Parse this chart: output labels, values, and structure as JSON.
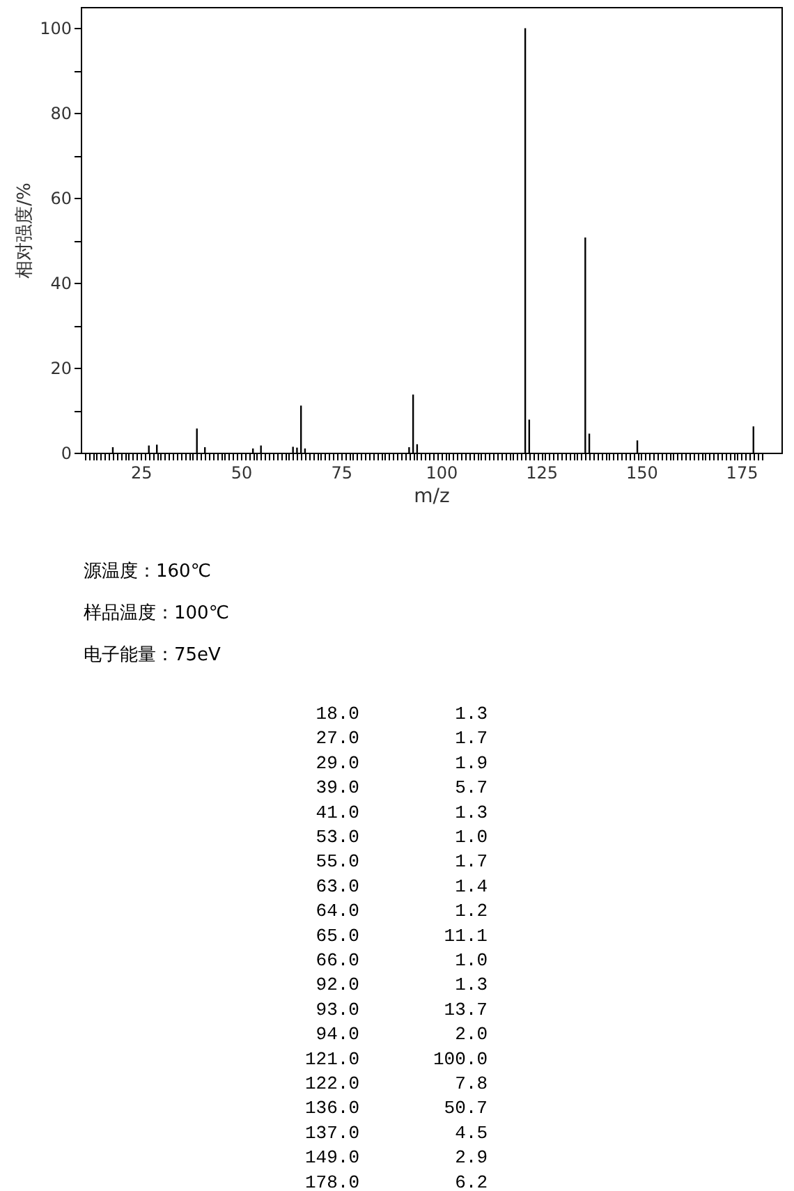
{
  "chart_data": [
    {
      "type": "bar",
      "xlabel": "m/z",
      "ylabel": "相对强度/%",
      "x": [
        18,
        27,
        29,
        39,
        41,
        53,
        55,
        63,
        64,
        65,
        66,
        92,
        93,
        94,
        121,
        122,
        136,
        137,
        149,
        178
      ],
      "series": [
        {
          "color": "#000000",
          "values": [
            1.3,
            1.7,
            1.9,
            5.7,
            1.3,
            1.0,
            1.7,
            1.4,
            1.2,
            11.1,
            1.0,
            1.3,
            13.7,
            2.0,
            100.0,
            7.8,
            50.7,
            4.5,
            2.9,
            6.2
          ]
        }
      ],
      "xlim": [
        10,
        185
      ],
      "ylim": [
        0,
        105
      ],
      "xticks": [
        {
          "value": 11,
          "label": null
        },
        {
          "value": 12,
          "label": null
        },
        {
          "value": 13,
          "label": null
        },
        {
          "value": 14,
          "label": null
        },
        {
          "value": 15,
          "label": null
        },
        {
          "value": 16,
          "label": null
        },
        {
          "value": 17,
          "label": null
        },
        {
          "value": 18,
          "label": null
        },
        {
          "value": 19,
          "label": null
        },
        {
          "value": 20,
          "label": null
        },
        {
          "value": 21,
          "label": null
        },
        {
          "value": 22,
          "label": null
        },
        {
          "value": 23,
          "label": null
        },
        {
          "value": 24,
          "label": null
        },
        25,
        {
          "value": 26,
          "label": null
        },
        {
          "value": 27,
          "label": null
        },
        {
          "value": 28,
          "label": null
        },
        {
          "value": 29,
          "label": null
        },
        {
          "value": 30,
          "label": null
        },
        {
          "value": 31,
          "label": null
        },
        {
          "value": 32,
          "label": null
        },
        {
          "value": 33,
          "label": null
        },
        {
          "value": 34,
          "label": null
        },
        {
          "value": 35,
          "label": null
        },
        {
          "value": 36,
          "label": null
        },
        {
          "value": 37,
          "label": null
        },
        {
          "value": 38,
          "label": null
        },
        {
          "value": 39,
          "label": null
        },
        {
          "value": 40,
          "label": null
        },
        {
          "value": 41,
          "label": null
        },
        {
          "value": 42,
          "label": null
        },
        {
          "value": 43,
          "label": null
        },
        {
          "value": 44,
          "label": null
        },
        {
          "value": 45,
          "label": null
        },
        {
          "value": 46,
          "label": null
        },
        {
          "value": 47,
          "label": null
        },
        {
          "value": 48,
          "label": null
        },
        {
          "value": 49,
          "label": null
        },
        50,
        {
          "value": 51,
          "label": null
        },
        {
          "value": 52,
          "label": null
        },
        {
          "value": 53,
          "label": null
        },
        {
          "value": 54,
          "label": null
        },
        {
          "value": 55,
          "label": null
        },
        {
          "value": 56,
          "label": null
        },
        {
          "value": 57,
          "label": null
        },
        {
          "value": 58,
          "label": null
        },
        {
          "value": 59,
          "label": null
        },
        {
          "value": 60,
          "label": null
        },
        {
          "value": 61,
          "label": null
        },
        {
          "value": 62,
          "label": null
        },
        {
          "value": 63,
          "label": null
        },
        {
          "value": 64,
          "label": null
        },
        {
          "value": 65,
          "label": null
        },
        {
          "value": 66,
          "label": null
        },
        {
          "value": 67,
          "label": null
        },
        {
          "value": 68,
          "label": null
        },
        {
          "value": 69,
          "label": null
        },
        {
          "value": 70,
          "label": null
        },
        {
          "value": 71,
          "label": null
        },
        {
          "value": 72,
          "label": null
        },
        {
          "value": 73,
          "label": null
        },
        {
          "value": 74,
          "label": null
        },
        75,
        {
          "value": 76,
          "label": null
        },
        {
          "value": 77,
          "label": null
        },
        {
          "value": 78,
          "label": null
        },
        {
          "value": 79,
          "label": null
        },
        {
          "value": 80,
          "label": null
        },
        {
          "value": 81,
          "label": null
        },
        {
          "value": 82,
          "label": null
        },
        {
          "value": 83,
          "label": null
        },
        {
          "value": 84,
          "label": null
        },
        {
          "value": 85,
          "label": null
        },
        {
          "value": 86,
          "label": null
        },
        {
          "value": 87,
          "label": null
        },
        {
          "value": 88,
          "label": null
        },
        {
          "value": 89,
          "label": null
        },
        {
          "value": 90,
          "label": null
        },
        {
          "value": 91,
          "label": null
        },
        {
          "value": 92,
          "label": null
        },
        {
          "value": 93,
          "label": null
        },
        {
          "value": 94,
          "label": null
        },
        {
          "value": 95,
          "label": null
        },
        {
          "value": 96,
          "label": null
        },
        {
          "value": 97,
          "label": null
        },
        {
          "value": 98,
          "label": null
        },
        {
          "value": 99,
          "label": null
        },
        100,
        {
          "value": 101,
          "label": null
        },
        {
          "value": 102,
          "label": null
        },
        {
          "value": 103,
          "label": null
        },
        {
          "value": 104,
          "label": null
        },
        {
          "value": 105,
          "label": null
        },
        {
          "value": 106,
          "label": null
        },
        {
          "value": 107,
          "label": null
        },
        {
          "value": 108,
          "label": null
        },
        {
          "value": 109,
          "label": null
        },
        {
          "value": 110,
          "label": null
        },
        {
          "value": 111,
          "label": null
        },
        {
          "value": 112,
          "label": null
        },
        {
          "value": 113,
          "label": null
        },
        {
          "value": 114,
          "label": null
        },
        {
          "value": 115,
          "label": null
        },
        {
          "value": 116,
          "label": null
        },
        {
          "value": 117,
          "label": null
        },
        {
          "value": 118,
          "label": null
        },
        {
          "value": 119,
          "label": null
        },
        {
          "value": 120,
          "label": null
        },
        {
          "value": 121,
          "label": null
        },
        {
          "value": 122,
          "label": null
        },
        {
          "value": 123,
          "label": null
        },
        {
          "value": 124,
          "label": null
        },
        125,
        {
          "value": 126,
          "label": null
        },
        {
          "value": 127,
          "label": null
        },
        {
          "value": 128,
          "label": null
        },
        {
          "value": 129,
          "label": null
        },
        {
          "value": 130,
          "label": null
        },
        {
          "value": 131,
          "label": null
        },
        {
          "value": 132,
          "label": null
        },
        {
          "value": 133,
          "label": null
        },
        {
          "value": 134,
          "label": null
        },
        {
          "value": 135,
          "label": null
        },
        {
          "value": 136,
          "label": null
        },
        {
          "value": 137,
          "label": null
        },
        {
          "value": 138,
          "label": null
        },
        {
          "value": 139,
          "label": null
        },
        {
          "value": 140,
          "label": null
        },
        {
          "value": 141,
          "label": null
        },
        {
          "value": 142,
          "label": null
        },
        {
          "value": 143,
          "label": null
        },
        {
          "value": 144,
          "label": null
        },
        {
          "value": 145,
          "label": null
        },
        {
          "value": 146,
          "label": null
        },
        {
          "value": 147,
          "label": null
        },
        {
          "value": 148,
          "label": null
        },
        {
          "value": 149,
          "label": null
        },
        150,
        {
          "value": 151,
          "label": null
        },
        {
          "value": 152,
          "label": null
        },
        {
          "value": 153,
          "label": null
        },
        {
          "value": 154,
          "label": null
        },
        {
          "value": 155,
          "label": null
        },
        {
          "value": 156,
          "label": null
        },
        {
          "value": 157,
          "label": null
        },
        {
          "value": 158,
          "label": null
        },
        {
          "value": 159,
          "label": null
        },
        {
          "value": 160,
          "label": null
        },
        {
          "value": 161,
          "label": null
        },
        {
          "value": 162,
          "label": null
        },
        {
          "value": 163,
          "label": null
        },
        {
          "value": 164,
          "label": null
        },
        {
          "value": 165,
          "label": null
        },
        {
          "value": 166,
          "label": null
        },
        {
          "value": 167,
          "label": null
        },
        {
          "value": 168,
          "label": null
        },
        {
          "value": 169,
          "label": null
        },
        {
          "value": 170,
          "label": null
        },
        {
          "value": 171,
          "label": null
        },
        {
          "value": 172,
          "label": null
        },
        {
          "value": 173,
          "label": null
        },
        {
          "value": 174,
          "label": null
        },
        175,
        {
          "value": 176,
          "label": null
        },
        {
          "value": 177,
          "label": null
        },
        {
          "value": 178,
          "label": null
        },
        {
          "value": 179,
          "label": null
        },
        {
          "value": 180,
          "label": null
        }
      ],
      "yticks": [
        0,
        {
          "value": 10,
          "label": null
        },
        20,
        {
          "value": 30,
          "label": null
        },
        40,
        {
          "value": 50,
          "label": null
        },
        60,
        {
          "value": 70,
          "label": null
        },
        80,
        {
          "value": 90,
          "label": null
        },
        100
      ],
      "grid": false,
      "annotations": [
        "源温度：160℃",
        "样品温度：100℃",
        "电子能量：75eV"
      ]
    },
    {
      "type": "other",
      "annotations": [
        "18.0",
        "1.3",
        "27.0",
        "1.7",
        "29.0",
        "1.9",
        "39.0",
        "5.7",
        "41.0",
        "1.3",
        "53.0",
        "1.0",
        "55.0",
        "1.7",
        "63.0",
        "1.4",
        "64.0",
        "1.2",
        "65.0",
        "11.1",
        "66.0",
        "1.0",
        "92.0",
        "1.3",
        "93.0",
        "13.7",
        "94.0",
        "2.0",
        "121.0",
        "100.0",
        "122.0",
        "7.8",
        "136.0",
        "50.7",
        "137.0",
        "4.5",
        "149.0",
        "2.9",
        "178.0",
        "6.2"
      ]
    }
  ]
}
